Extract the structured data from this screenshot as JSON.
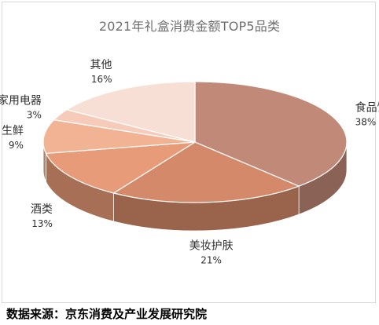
{
  "chart_data": {
    "type": "pie",
    "title": "2021年礼盒消费金额TOP5品类",
    "unit": "%",
    "slices": [
      {
        "label": "食品饮料",
        "value": 38,
        "color": "#c08978"
      },
      {
        "label": "美妆护肤",
        "value": 21,
        "color": "#d48a6a"
      },
      {
        "label": "酒类",
        "value": 13,
        "color": "#e89b78"
      },
      {
        "label": "生鲜",
        "value": 9,
        "color": "#f2b394"
      },
      {
        "label": "家用电器",
        "value": 3,
        "color": "#f6cbb9"
      },
      {
        "label": "其他",
        "value": 16,
        "color": "#f8dfd6"
      }
    ]
  },
  "source_note": "数据来源：京东消费及产业发展研究院"
}
